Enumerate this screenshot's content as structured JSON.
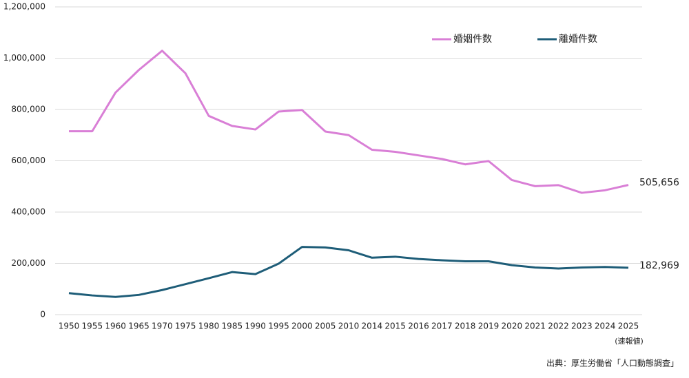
{
  "chart_data": {
    "type": "line",
    "categories": [
      "1950",
      "1955",
      "1960",
      "1965",
      "1970",
      "1975",
      "1980",
      "1985",
      "1990",
      "1995",
      "2000",
      "2005",
      "2010",
      "2014",
      "2015",
      "2016",
      "2017",
      "2018",
      "2019",
      "2020",
      "2021",
      "2022",
      "2023",
      "2024",
      "2025"
    ],
    "series": [
      {
        "name": "婚姻件数",
        "color": "#d97fd6",
        "values": [
          715000,
          715000,
          866000,
          954000,
          1029000,
          941000,
          775000,
          736000,
          722000,
          792000,
          798000,
          714000,
          700000,
          643000,
          635000,
          621000,
          607000,
          586000,
          599000,
          525000,
          501000,
          505000,
          475000,
          485000,
          505656
        ],
        "value_labels": [
          null,
          null,
          null,
          null,
          null,
          null,
          null,
          null,
          null,
          null,
          null,
          null,
          null,
          null,
          null,
          null,
          null,
          null,
          null,
          null,
          null,
          null,
          null,
          null,
          "505,656"
        ]
      },
      {
        "name": "離婚件数",
        "color": "#1e5d78",
        "values": [
          84000,
          75000,
          69000,
          77000,
          96000,
          119000,
          142000,
          166000,
          158000,
          199000,
          264000,
          262000,
          251000,
          222000,
          226000,
          217000,
          212000,
          208000,
          208000,
          193000,
          184000,
          180000,
          184000,
          186000,
          182969
        ],
        "value_labels": [
          null,
          null,
          null,
          null,
          null,
          null,
          null,
          null,
          null,
          null,
          null,
          null,
          null,
          null,
          null,
          null,
          null,
          null,
          null,
          null,
          null,
          null,
          null,
          null,
          "182,969"
        ]
      }
    ],
    "ylim": [
      0,
      1200000
    ],
    "yticks": [
      0,
      {
        "value": 200000,
        "label": "200,000"
      },
      {
        "value": 400000,
        "label": "400,000"
      },
      {
        "value": 600000,
        "label": "600,000"
      },
      {
        "value": 800000,
        "label": "800,000"
      },
      {
        "value": 1000000,
        "label": "1,000,000"
      },
      {
        "value": 1200000,
        "label": "1,200,000"
      }
    ],
    "grid": true,
    "annotation": "(速報値)",
    "source": "出典：厚生労働省「人口動態調査」"
  }
}
